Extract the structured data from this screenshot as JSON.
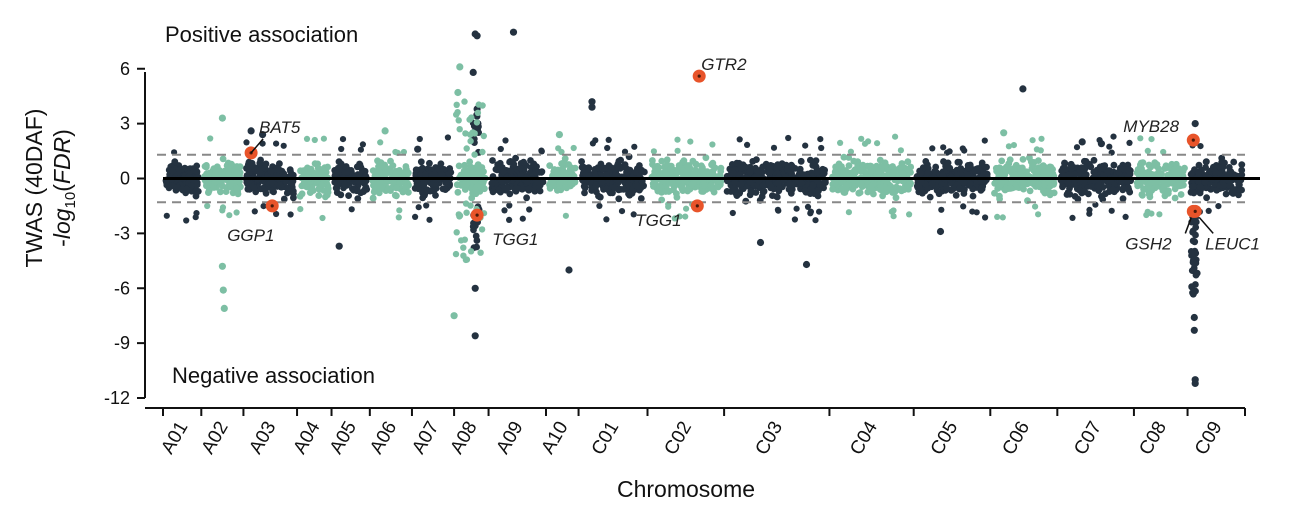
{
  "chart_data": {
    "type": "scatter",
    "subtype": "manhattan",
    "ylabel": "TWAS (40DAF)",
    "ylabel2_parts": {
      "prefix": "-",
      "log": "log",
      "sub": "10",
      "open": "(",
      "var": "FDR",
      "close": ")"
    },
    "xlabel": "Chromosome",
    "ylim": [
      -12,
      8
    ],
    "yticks": [
      6,
      3,
      0,
      -3,
      -6,
      -9,
      -12
    ],
    "threshold": 1.3,
    "annotations": {
      "positive": "Positive association",
      "negative": "Negative association"
    },
    "colors": {
      "dark": "#243240",
      "light": "#7dbfa4",
      "highlight": "#e8542a",
      "threshold": "#888888",
      "axis": "#111111"
    },
    "chromosomes": [
      {
        "name": "A01",
        "start": 0.0,
        "end": 2.0,
        "color": "dark"
      },
      {
        "name": "A02",
        "start": 2.0,
        "end": 4.2,
        "color": "light"
      },
      {
        "name": "A03",
        "start": 4.2,
        "end": 7.0,
        "color": "dark"
      },
      {
        "name": "A04",
        "start": 7.0,
        "end": 8.8,
        "color": "light"
      },
      {
        "name": "A05",
        "start": 8.8,
        "end": 10.8,
        "color": "dark"
      },
      {
        "name": "A06",
        "start": 10.8,
        "end": 13.0,
        "color": "light"
      },
      {
        "name": "A07",
        "start": 13.0,
        "end": 15.2,
        "color": "dark"
      },
      {
        "name": "A08",
        "start": 15.2,
        "end": 17.0,
        "color": "light"
      },
      {
        "name": "A09",
        "start": 17.0,
        "end": 20.0,
        "color": "dark"
      },
      {
        "name": "A10",
        "start": 20.0,
        "end": 21.7,
        "color": "light"
      },
      {
        "name": "C01",
        "start": 21.7,
        "end": 25.3,
        "color": "dark"
      },
      {
        "name": "C02",
        "start": 25.3,
        "end": 29.3,
        "color": "light"
      },
      {
        "name": "C03",
        "start": 29.3,
        "end": 34.8,
        "color": "dark"
      },
      {
        "name": "C04",
        "start": 34.8,
        "end": 39.2,
        "color": "light"
      },
      {
        "name": "C05",
        "start": 39.2,
        "end": 43.2,
        "color": "dark"
      },
      {
        "name": "C06",
        "start": 43.2,
        "end": 46.7,
        "color": "light"
      },
      {
        "name": "C07",
        "start": 46.7,
        "end": 50.7,
        "color": "dark"
      },
      {
        "name": "C08",
        "start": 50.7,
        "end": 53.5,
        "color": "light"
      },
      {
        "name": "C09",
        "start": 53.5,
        "end": 56.5,
        "color": "dark"
      }
    ],
    "highlighted_genes": [
      {
        "gene": "BAT5",
        "pos": 4.6,
        "value": 1.4
      },
      {
        "gene": "GGP1",
        "pos": 5.7,
        "value": -1.5
      },
      {
        "gene": "TGG1",
        "pos": 16.4,
        "value": -2.0,
        "label_id": "a"
      },
      {
        "gene": "GTR2",
        "pos": 28.0,
        "value": 5.6
      },
      {
        "gene": "TGG1",
        "pos": 27.9,
        "value": -1.5,
        "label_id": "c"
      },
      {
        "gene": "MYB28",
        "pos": 53.8,
        "value": 2.1
      },
      {
        "gene": "GSH2",
        "pos": 53.8,
        "value": -1.8
      },
      {
        "gene": "LEUC1",
        "pos": 53.9,
        "value": -1.8
      }
    ],
    "notable_points": [
      {
        "pos": 15.5,
        "value": 6.1,
        "color": "light"
      },
      {
        "pos": 15.4,
        "value": 4.7,
        "color": "light"
      },
      {
        "pos": 15.2,
        "value": -7.5,
        "color": "light"
      },
      {
        "pos": 3.1,
        "value": 3.3,
        "color": "light"
      },
      {
        "pos": 3.2,
        "value": -7.1,
        "color": "light"
      },
      {
        "pos": 3.15,
        "value": -6.1,
        "color": "light"
      },
      {
        "pos": 3.1,
        "value": -4.8,
        "color": "light"
      },
      {
        "pos": 16.3,
        "value": 7.9,
        "color": "dark"
      },
      {
        "pos": 16.4,
        "value": 7.8,
        "color": "dark"
      },
      {
        "pos": 18.3,
        "value": 8.0,
        "color": "dark"
      },
      {
        "pos": 16.3,
        "value": -8.6,
        "color": "dark"
      },
      {
        "pos": 16.3,
        "value": -6.0,
        "color": "dark"
      },
      {
        "pos": 16.2,
        "value": 5.8,
        "color": "dark"
      },
      {
        "pos": 16.4,
        "value": 3.8,
        "color": "dark"
      },
      {
        "pos": 22.4,
        "value": 4.2,
        "color": "dark"
      },
      {
        "pos": 22.4,
        "value": 3.9,
        "color": "dark"
      },
      {
        "pos": 21.2,
        "value": -5.0,
        "color": "dark"
      },
      {
        "pos": 44.9,
        "value": 4.9,
        "color": "dark"
      },
      {
        "pos": 4.6,
        "value": 2.6,
        "color": "dark"
      },
      {
        "pos": 5.2,
        "value": 2.4,
        "color": "dark"
      },
      {
        "pos": 9.2,
        "value": -3.7,
        "color": "dark"
      },
      {
        "pos": 40.6,
        "value": -2.9,
        "color": "dark"
      },
      {
        "pos": 33.6,
        "value": -4.7,
        "color": "dark"
      },
      {
        "pos": 31.2,
        "value": -3.5,
        "color": "dark"
      },
      {
        "pos": 53.9,
        "value": -11.0,
        "color": "dark"
      },
      {
        "pos": 53.9,
        "value": -11.2,
        "color": "dark"
      },
      {
        "pos": 53.85,
        "value": -8.3,
        "color": "dark"
      },
      {
        "pos": 53.85,
        "value": -7.6,
        "color": "dark"
      },
      {
        "pos": 53.9,
        "value": 3.0,
        "color": "dark"
      },
      {
        "pos": 13.3,
        "value": 1.6,
        "color": "dark"
      },
      {
        "pos": 49.0,
        "value": 1.9,
        "color": "dark"
      },
      {
        "pos": 48.0,
        "value": 2.0,
        "color": "dark"
      },
      {
        "pos": 11.6,
        "value": 2.6,
        "color": "light"
      },
      {
        "pos": 43.9,
        "value": 2.5,
        "color": "light"
      },
      {
        "pos": 20.7,
        "value": 2.4,
        "color": "light"
      }
    ]
  }
}
